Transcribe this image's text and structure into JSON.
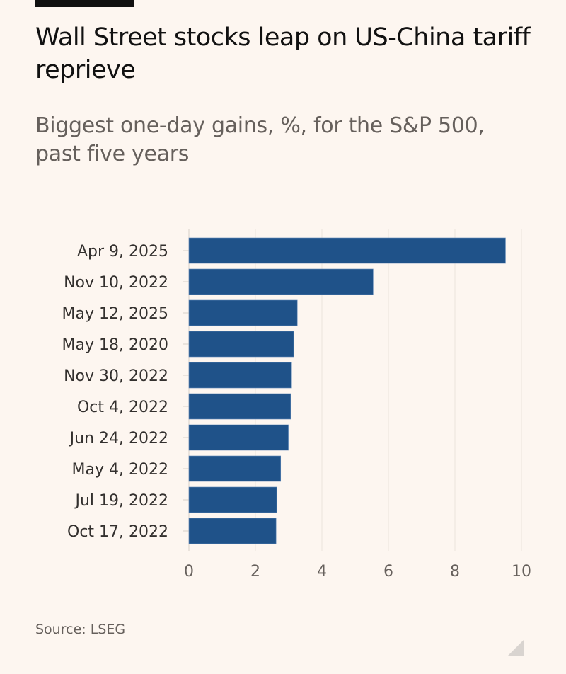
{
  "title": "Wall Street stocks leap on US-China tariff reprieve",
  "subtitle": "Biggest one-day gains, %, for the S&P 500, past five years",
  "source": "Source: LSEG",
  "chart_data": {
    "type": "bar",
    "orientation": "horizontal",
    "categories": [
      "Apr 9, 2025",
      "Nov 10, 2022",
      "May 12, 2025",
      "May 18, 2020",
      "Nov 30, 2022",
      "Oct 4, 2022",
      "Jun 24, 2022",
      "May 4, 2022",
      "Jul 19, 2022",
      "Oct 17, 2022"
    ],
    "values": [
      9.52,
      5.54,
      3.26,
      3.15,
      3.09,
      3.06,
      2.99,
      2.76,
      2.64,
      2.62
    ],
    "xlim": [
      0,
      10
    ],
    "xticks": [
      "0",
      "2",
      "4",
      "6",
      "8",
      "10"
    ],
    "grid": true,
    "bar_color": "#1f5289"
  }
}
